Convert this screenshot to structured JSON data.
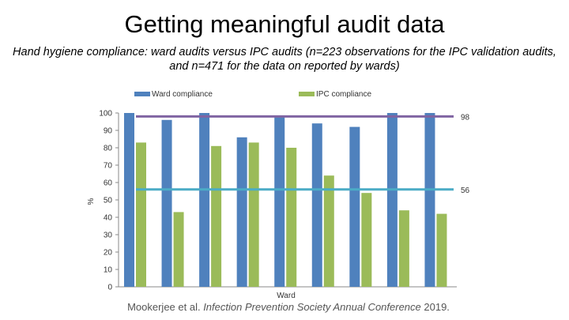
{
  "slide": {
    "title": "Getting meaningful audit data",
    "subtitle_line1": "Hand hygiene compliance: ward audits versus IPC audits (n=223 observations for the IPC validation audits,",
    "subtitle_line2": "and n=471 for the data on reported by wards)",
    "citation_author": "Mookerjee et al. ",
    "citation_source": "Infection Prevention Society Annual Conference",
    "citation_year": " 2019."
  },
  "colors": {
    "ward": "#4f81bd",
    "ipc": "#9bbb59",
    "ref_high": "#8064a2",
    "ref_low": "#4bacc6",
    "axis": "#888888"
  },
  "chart_data": {
    "type": "bar",
    "title": "",
    "xlabel": "Ward",
    "ylabel": "%",
    "ylim": [
      0,
      100
    ],
    "yticks": [
      0,
      10,
      20,
      30,
      40,
      50,
      60,
      70,
      80,
      90,
      100
    ],
    "categories": [
      "",
      "",
      "",
      "",
      "",
      "",
      "",
      "",
      ""
    ],
    "series": [
      {
        "name": "Ward compliance",
        "values": [
          100,
          96,
          100,
          86,
          98,
          94,
          92,
          100,
          100
        ]
      },
      {
        "name": "IPC compliance",
        "values": [
          83,
          43,
          81,
          83,
          80,
          64,
          54,
          44,
          42
        ]
      }
    ],
    "reference_lines": [
      {
        "value": 98,
        "label": "98"
      },
      {
        "value": 56,
        "label": "56"
      }
    ],
    "legend": "top",
    "grid": false
  }
}
